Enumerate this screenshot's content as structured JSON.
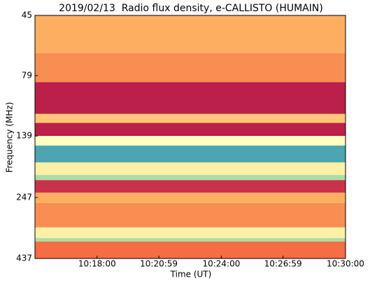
{
  "chart_data": {
    "type": "spectrogram",
    "title": "2019/02/13  Radio flux density, e-CALLISTO (HUMAIN)",
    "x_label": "Time (UT)",
    "y_label": "Frequency (MHz)",
    "xlim": [
      "10:15:00",
      "10:30:00"
    ],
    "xticks": [
      "10:18:00",
      "10:20:59",
      "10:24:00",
      "10:26:59",
      "10:30:00"
    ],
    "ylim": [
      45,
      437
    ],
    "yticks": [
      45,
      79,
      139,
      247,
      437
    ],
    "yscale": "log",
    "y_inverted": true,
    "colormap": "Spectral",
    "y_edges": [
      45,
      64,
      84,
      113,
      123,
      139,
      152,
      178,
      200,
      210,
      236,
      260,
      327,
      361,
      373,
      437
    ],
    "intensity": [
      0.3,
      0.25,
      0.05,
      0.35,
      0.05,
      0.5,
      0.85,
      0.45,
      0.7,
      0.08,
      0.3,
      0.25,
      0.45,
      0.7,
      0.2
    ]
  }
}
